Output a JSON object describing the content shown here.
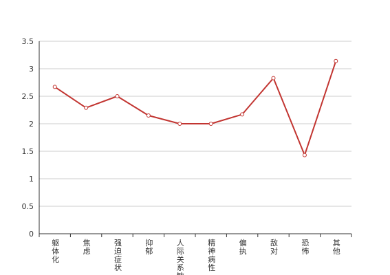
{
  "chart_data": {
    "type": "line",
    "title": "",
    "xlabel": "",
    "ylabel": "",
    "categories": [
      "躯体化",
      "焦虑",
      "强迫症状",
      "抑郁",
      "人际关系敏感",
      "精神病性",
      "偏执",
      "敌对",
      "恐怖",
      "其他"
    ],
    "series": [
      {
        "values": [
          2.67,
          2.29,
          2.5,
          2.15,
          2.0,
          2.0,
          2.17,
          2.83,
          1.43,
          3.14
        ],
        "color": "#c23531"
      }
    ],
    "yticks": [
      "0",
      "0.5",
      "1",
      "1.5",
      "2",
      "2.5",
      "3",
      "3.5"
    ],
    "ylim": [
      0,
      3.5
    ],
    "grid": true,
    "legend": "none"
  }
}
